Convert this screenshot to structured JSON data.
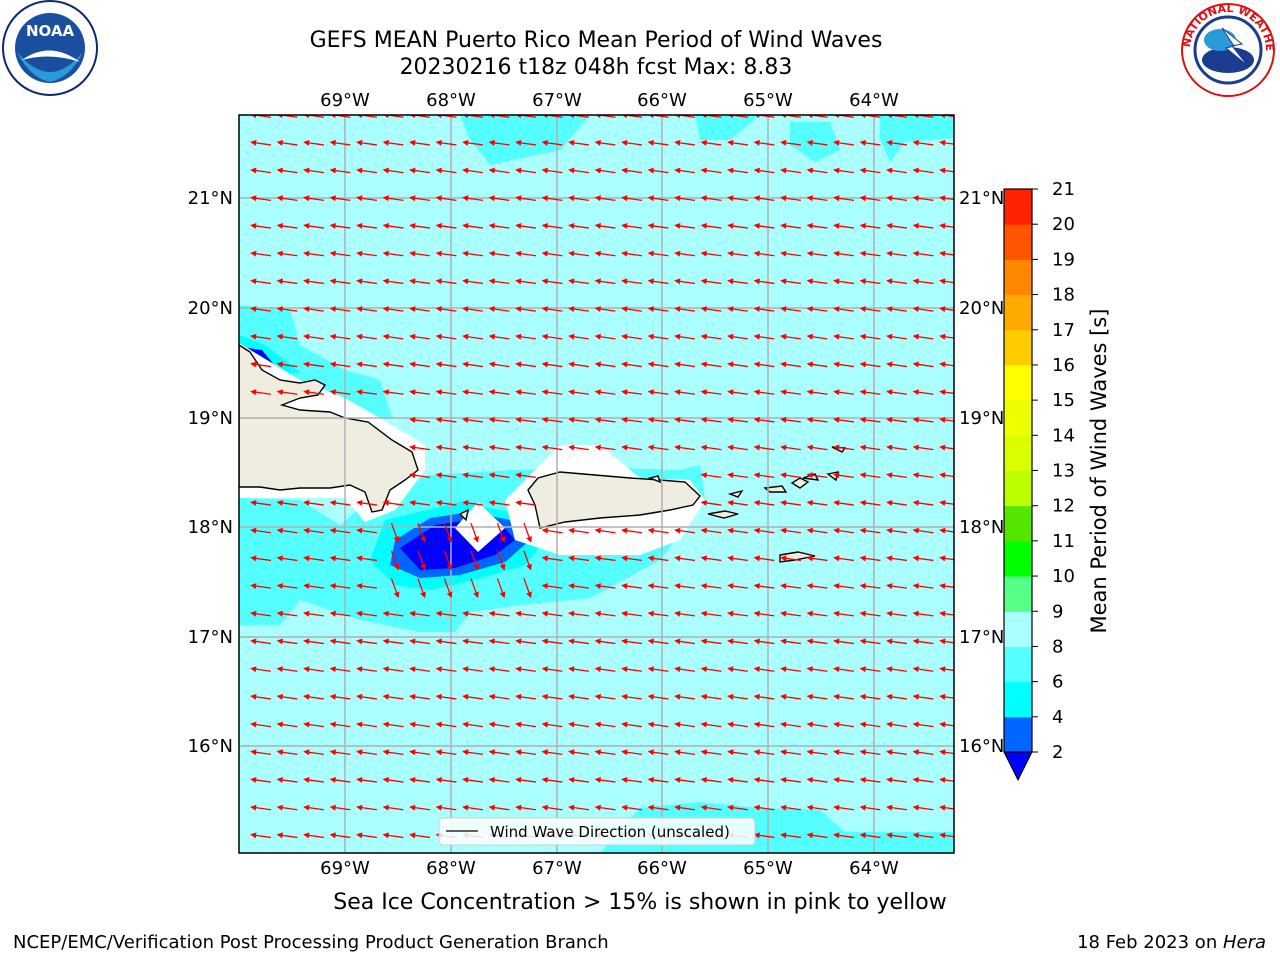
{
  "header": {
    "title_line1": "GEFS MEAN Puerto Rico Mean Period of Wind Waves",
    "title_line2": "20230216 t18z 048h fcst   Max: 8.83"
  },
  "logos": {
    "left": {
      "name": "noaa-logo",
      "text": "NOAA"
    },
    "right": {
      "name": "nws-logo",
      "text": "NATIONAL WEATHER SERVICE"
    }
  },
  "map": {
    "lon_labels": [
      "69°W",
      "68°W",
      "67°W",
      "66°W",
      "65°W",
      "64°W"
    ],
    "lat_labels": [
      "21°N",
      "20°N",
      "19°N",
      "18°N",
      "17°N",
      "16°N"
    ],
    "legend_label": "Wind Wave Direction (unscaled)",
    "arrow_color": "#ff0000",
    "land_color": "#efeddf"
  },
  "colorbar": {
    "label": "Mean Period of Wind Waves [s]",
    "ticks": [
      "2",
      "4",
      "6",
      "8",
      "9",
      "10",
      "11",
      "12",
      "13",
      "14",
      "15",
      "16",
      "17",
      "18",
      "19",
      "20",
      "21"
    ],
    "colors": [
      "#0066ff",
      "#00ffff",
      "#55ffff",
      "#aaffff",
      "#55ff88",
      "#00ff00",
      "#55e600",
      "#bbff00",
      "#d9ff00",
      "#eeff00",
      "#ffff00",
      "#ffcc00",
      "#ffaa00",
      "#ff8800",
      "#ff5500",
      "#ff2200"
    ],
    "extend_color": "#0000ff"
  },
  "footer": {
    "note": "Sea Ice Concentration > 15% is shown in pink to yellow",
    "branch": "NCEP/EMC/Verification Post Processing Product Generation Branch",
    "date": "18 Feb 2023 on ",
    "machine": "Hera"
  }
}
